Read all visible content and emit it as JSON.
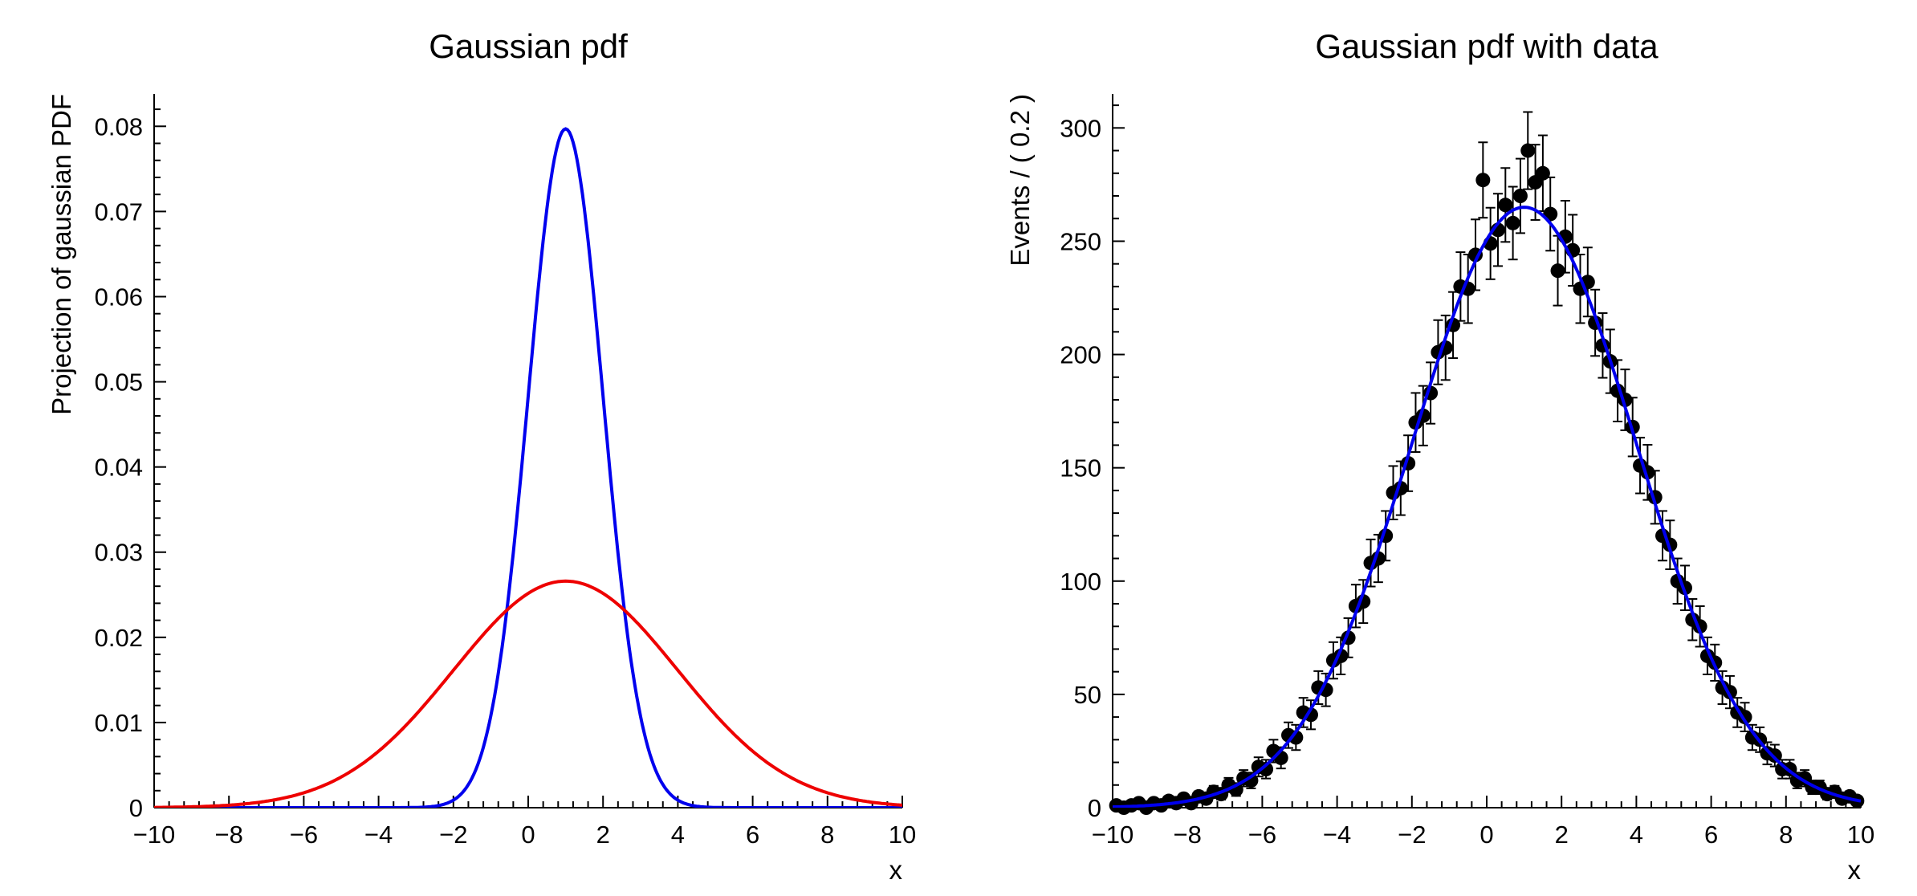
{
  "canvas": {
    "background": "#ffffff",
    "axis_color": "#000000"
  },
  "chart_data": [
    {
      "type": "line",
      "title": "Gaussian pdf",
      "xlabel": "x",
      "ylabel": "Projection of gaussian PDF",
      "xlim": [
        -10,
        10
      ],
      "ylim": [
        0,
        0.0838
      ],
      "grid": false,
      "legend": "none",
      "x_ticks": {
        "values": [
          -10,
          -8,
          -6,
          -4,
          -2,
          0,
          2,
          4,
          6,
          8,
          10
        ],
        "labels": [
          "−10",
          "−8",
          "−6",
          "−4",
          "−2",
          "0",
          "2",
          "4",
          "6",
          "8",
          "10"
        ],
        "minor_step": 0.4
      },
      "y_ticks": {
        "values": [
          0,
          0.01,
          0.02,
          0.03,
          0.04,
          0.05,
          0.06,
          0.07,
          0.08
        ],
        "labels": [
          "0",
          "0.01",
          "0.02",
          "0.03",
          "0.04",
          "0.05",
          "0.06",
          "0.07",
          "0.08"
        ],
        "minor_step": 0.002
      },
      "series": [
        {
          "name": "gaussian-curve-sigma1",
          "style": "curve",
          "color": "#0000ee",
          "gaussian": {
            "mean": 1,
            "sigma": 1,
            "peak": 0.0797
          }
        },
        {
          "name": "gaussian-curve-sigma3",
          "style": "curve",
          "color": "#ee0000",
          "gaussian": {
            "mean": 1,
            "sigma": 3,
            "peak": 0.0266
          }
        }
      ]
    },
    {
      "type": "scatter",
      "title": "Gaussian pdf with data",
      "xlabel": "x",
      "ylabel": "Events / ( 0.2 )",
      "xlim": [
        -10,
        10
      ],
      "ylim": [
        0,
        315
      ],
      "grid": false,
      "legend": "none",
      "x_ticks": {
        "values": [
          -10,
          -8,
          -6,
          -4,
          -2,
          0,
          2,
          4,
          6,
          8,
          10
        ],
        "labels": [
          "−10",
          "−8",
          "−6",
          "−4",
          "−2",
          "0",
          "2",
          "4",
          "6",
          "8",
          "10"
        ],
        "minor_step": 0.4
      },
      "y_ticks": {
        "values": [
          0,
          50,
          100,
          150,
          200,
          250,
          300
        ],
        "labels": [
          "0",
          "50",
          "100",
          "150",
          "200",
          "250",
          "300"
        ],
        "minor_step": 10
      },
      "series": [
        {
          "name": "data-points",
          "style": "points",
          "color": "#000000",
          "marker": "circle",
          "error_model": "sqrt",
          "points": [
            [
              -9.9,
              1
            ],
            [
              -9.7,
              0
            ],
            [
              -9.5,
              1
            ],
            [
              -9.3,
              2
            ],
            [
              -9.1,
              0
            ],
            [
              -8.9,
              2
            ],
            [
              -8.7,
              1
            ],
            [
              -8.5,
              3
            ],
            [
              -8.3,
              2
            ],
            [
              -8.1,
              4
            ],
            [
              -7.9,
              2
            ],
            [
              -7.7,
              5
            ],
            [
              -7.5,
              4
            ],
            [
              -7.3,
              7
            ],
            [
              -7.1,
              6
            ],
            [
              -6.9,
              10
            ],
            [
              -6.7,
              8
            ],
            [
              -6.5,
              13
            ],
            [
              -6.3,
              12
            ],
            [
              -6.1,
              18
            ],
            [
              -5.9,
              17
            ],
            [
              -5.7,
              25
            ],
            [
              -5.5,
              22
            ],
            [
              -5.3,
              32
            ],
            [
              -5.1,
              31
            ],
            [
              -4.9,
              42
            ],
            [
              -4.7,
              41
            ],
            [
              -4.5,
              53
            ],
            [
              -4.3,
              52
            ],
            [
              -4.1,
              65
            ],
            [
              -3.9,
              67
            ],
            [
              -3.7,
              75
            ],
            [
              -3.5,
              89
            ],
            [
              -3.3,
              91
            ],
            [
              -3.1,
              108
            ],
            [
              -2.9,
              110
            ],
            [
              -2.7,
              120
            ],
            [
              -2.5,
              139
            ],
            [
              -2.3,
              141
            ],
            [
              -2.1,
              152
            ],
            [
              -1.9,
              170
            ],
            [
              -1.7,
              173
            ],
            [
              -1.5,
              183
            ],
            [
              -1.3,
              201
            ],
            [
              -1.1,
              203
            ],
            [
              -0.9,
              213
            ],
            [
              -0.7,
              230
            ],
            [
              -0.5,
              229
            ],
            [
              -0.3,
              244
            ],
            [
              -0.1,
              277
            ],
            [
              0.1,
              249
            ],
            [
              0.3,
              255
            ],
            [
              0.5,
              266
            ],
            [
              0.7,
              258
            ],
            [
              0.9,
              270
            ],
            [
              1.1,
              290
            ],
            [
              1.3,
              276
            ],
            [
              1.5,
              280
            ],
            [
              1.7,
              262
            ],
            [
              1.9,
              237
            ],
            [
              2.1,
              252
            ],
            [
              2.3,
              246
            ],
            [
              2.5,
              229
            ],
            [
              2.7,
              232
            ],
            [
              2.9,
              214
            ],
            [
              3.1,
              204
            ],
            [
              3.3,
              197
            ],
            [
              3.5,
              184
            ],
            [
              3.7,
              180
            ],
            [
              3.9,
              168
            ],
            [
              4.1,
              151
            ],
            [
              4.3,
              148
            ],
            [
              4.5,
              137
            ],
            [
              4.7,
              120
            ],
            [
              4.9,
              116
            ],
            [
              5.1,
              100
            ],
            [
              5.3,
              97
            ],
            [
              5.5,
              83
            ],
            [
              5.7,
              80
            ],
            [
              5.9,
              67
            ],
            [
              6.1,
              64
            ],
            [
              6.3,
              53
            ],
            [
              6.5,
              51
            ],
            [
              6.7,
              42
            ],
            [
              6.9,
              40
            ],
            [
              7.1,
              31
            ],
            [
              7.3,
              30
            ],
            [
              7.5,
              24
            ],
            [
              7.7,
              23
            ],
            [
              7.9,
              17
            ],
            [
              8.1,
              17
            ],
            [
              8.3,
              12
            ],
            [
              8.5,
              13
            ],
            [
              8.7,
              9
            ],
            [
              8.9,
              9
            ],
            [
              9.1,
              6
            ],
            [
              9.3,
              7
            ],
            [
              9.5,
              4
            ],
            [
              9.7,
              5
            ],
            [
              9.9,
              3
            ]
          ]
        },
        {
          "name": "gaussian-fit-curve",
          "style": "curve",
          "color": "#0000ee",
          "gaussian": {
            "mean": 1,
            "sigma": 3,
            "peak": 265
          }
        }
      ]
    }
  ]
}
